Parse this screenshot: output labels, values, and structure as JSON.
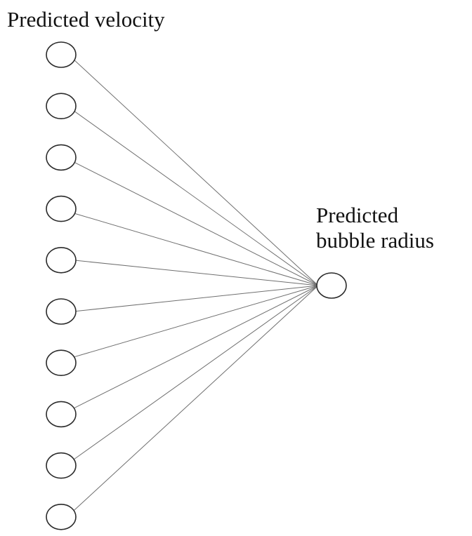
{
  "input_layer": {
    "label": "Predicted velocity",
    "node_count": 10
  },
  "output_layer": {
    "label_line1": "Predicted",
    "label_line2": "bubble radius",
    "node_count": 1
  },
  "colors": {
    "edge": "#6f6f6f",
    "node_stroke": "#2a2a2a",
    "text": "#111111"
  }
}
